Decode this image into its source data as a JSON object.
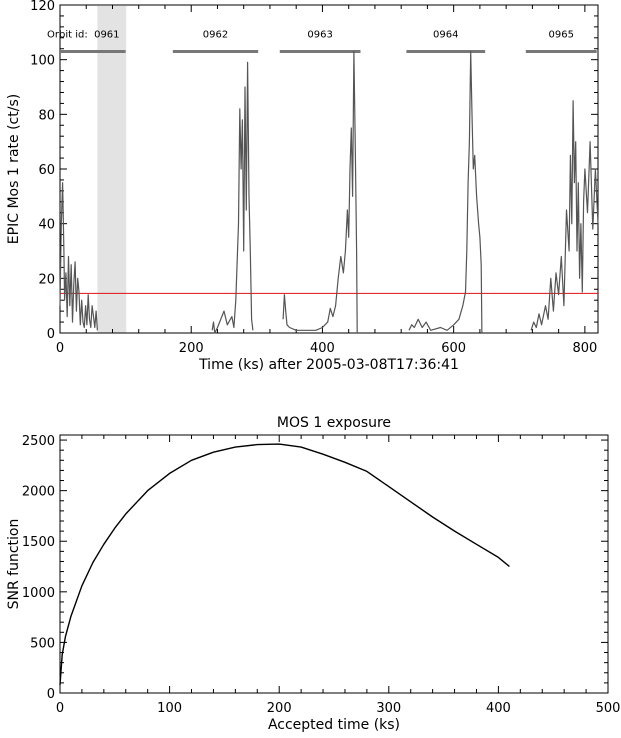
{
  "chart_data": [
    {
      "type": "line",
      "title": "",
      "xlabel": "Time (ks) after 2005-03-08T17:36:41",
      "ylabel": "EPIC Mos 1 rate (ct/s)",
      "xlim": [
        0,
        820
      ],
      "ylim": [
        0,
        120
      ],
      "xticks": [
        0,
        200,
        400,
        600,
        800
      ],
      "yticks": [
        0,
        20,
        40,
        60,
        80,
        100,
        120
      ],
      "threshold": 14.5,
      "threshold_color": "#dd1111",
      "shaded_interval": [
        57,
        101
      ],
      "orbit_label_prefix": "Orbit id:",
      "orbits": [
        {
          "id": "0961",
          "start": 0,
          "end": 100
        },
        {
          "id": "0962",
          "start": 172,
          "end": 302
        },
        {
          "id": "0963",
          "start": 335,
          "end": 458
        },
        {
          "id": "0964",
          "start": 528,
          "end": 648
        },
        {
          "id": "0965",
          "start": 710,
          "end": 818
        }
      ],
      "series": [
        {
          "points": [
            [
              0,
              10
            ],
            [
              2,
              40
            ],
            [
              4,
              55
            ],
            [
              6,
              30
            ],
            [
              7,
              12
            ],
            [
              9,
              22
            ],
            [
              11,
              6
            ],
            [
              13,
              28
            ],
            [
              15,
              10
            ],
            [
              17,
              25
            ],
            [
              19,
              4
            ],
            [
              21,
              18
            ],
            [
              23,
              26
            ],
            [
              25,
              8
            ],
            [
              27,
              20
            ],
            [
              29,
              15
            ],
            [
              31,
              3
            ],
            [
              33,
              12
            ],
            [
              35,
              4
            ],
            [
              37,
              2
            ],
            [
              39,
              10
            ],
            [
              41,
              3
            ],
            [
              43,
              14
            ],
            [
              45,
              5
            ],
            [
              47,
              2
            ],
            [
              49,
              10
            ],
            [
              51,
              6
            ],
            [
              53,
              2
            ],
            [
              55,
              8
            ],
            [
              57,
              1
            ]
          ]
        },
        {
          "points": [
            [
              232,
              1
            ],
            [
              234,
              4
            ],
            [
              236,
              0
            ],
            [
              240,
              2
            ],
            [
              250,
              8
            ],
            [
              255,
              3
            ],
            [
              262,
              6
            ],
            [
              265,
              2
            ],
            [
              268,
              12
            ],
            [
              272,
              40
            ],
            [
              274,
              82
            ],
            [
              276,
              60
            ],
            [
              278,
              78
            ],
            [
              280,
              30
            ],
            [
              282,
              90
            ],
            [
              284,
              45
            ],
            [
              286,
              99
            ],
            [
              288,
              50
            ],
            [
              290,
              30
            ],
            [
              292,
              5
            ],
            [
              294,
              1
            ]
          ]
        },
        {
          "points": [
            [
              340,
              5
            ],
            [
              342,
              14
            ],
            [
              344,
              8
            ],
            [
              346,
              3
            ],
            [
              350,
              2
            ],
            [
              360,
              1
            ],
            [
              390,
              1
            ],
            [
              400,
              2
            ],
            [
              408,
              4
            ],
            [
              412,
              9
            ],
            [
              416,
              6
            ],
            [
              420,
              10
            ],
            [
              424,
              20
            ],
            [
              428,
              28
            ],
            [
              432,
              22
            ],
            [
              435,
              30
            ],
            [
              438,
              45
            ],
            [
              440,
              35
            ],
            [
              442,
              60
            ],
            [
              444,
              75
            ],
            [
              446,
              50
            ],
            [
              448,
              103
            ],
            [
              450,
              70
            ],
            [
              452,
              30
            ],
            [
              453,
              0
            ]
          ]
        },
        {
          "points": [
            [
              532,
              1
            ],
            [
              536,
              3
            ],
            [
              540,
              2
            ],
            [
              546,
              5
            ],
            [
              552,
              2
            ],
            [
              558,
              4
            ],
            [
              565,
              1
            ],
            [
              580,
              2
            ],
            [
              590,
              1
            ],
            [
              600,
              3
            ],
            [
              608,
              5
            ],
            [
              614,
              10
            ],
            [
              618,
              15
            ],
            [
              620,
              30
            ],
            [
              622,
              55
            ],
            [
              624,
              70
            ],
            [
              626,
              103
            ],
            [
              628,
              80
            ],
            [
              630,
              60
            ],
            [
              632,
              65
            ],
            [
              635,
              50
            ],
            [
              638,
              40
            ],
            [
              640,
              35
            ],
            [
              642,
              25
            ],
            [
              643,
              0
            ]
          ]
        },
        {
          "points": [
            [
              718,
              1
            ],
            [
              722,
              4
            ],
            [
              726,
              2
            ],
            [
              730,
              7
            ],
            [
              734,
              3
            ],
            [
              740,
              10
            ],
            [
              744,
              5
            ],
            [
              748,
              20
            ],
            [
              752,
              8
            ],
            [
              756,
              22
            ],
            [
              760,
              14
            ],
            [
              764,
              28
            ],
            [
              768,
              10
            ],
            [
              772,
              45
            ],
            [
              776,
              30
            ],
            [
              778,
              65
            ],
            [
              780,
              40
            ],
            [
              782,
              85
            ],
            [
              784,
              55
            ],
            [
              786,
              70
            ],
            [
              788,
              30
            ],
            [
              790,
              55
            ],
            [
              792,
              20
            ],
            [
              794,
              40
            ],
            [
              796,
              15
            ],
            [
              798,
              48
            ],
            [
              800,
              60
            ],
            [
              804,
              44
            ],
            [
              808,
              70
            ],
            [
              812,
              38
            ],
            [
              816,
              60
            ],
            [
              820,
              40
            ]
          ]
        }
      ]
    },
    {
      "type": "line",
      "title": "MOS 1 exposure",
      "xlabel": "Accepted time (ks)",
      "ylabel": "SNR function",
      "xlim": [
        0,
        500
      ],
      "ylim": [
        0,
        2550
      ],
      "xticks": [
        0,
        100,
        200,
        300,
        400,
        500
      ],
      "yticks": [
        0,
        500,
        1000,
        1500,
        2000,
        2500
      ],
      "series": [
        {
          "points": [
            [
              0,
              80
            ],
            [
              2,
              380
            ],
            [
              5,
              560
            ],
            [
              10,
              760
            ],
            [
              20,
              1060
            ],
            [
              30,
              1290
            ],
            [
              40,
              1470
            ],
            [
              50,
              1630
            ],
            [
              60,
              1770
            ],
            [
              80,
              2000
            ],
            [
              100,
              2170
            ],
            [
              120,
              2300
            ],
            [
              140,
              2380
            ],
            [
              160,
              2430
            ],
            [
              180,
              2455
            ],
            [
              200,
              2460
            ],
            [
              220,
              2430
            ],
            [
              240,
              2360
            ],
            [
              260,
              2280
            ],
            [
              280,
              2190
            ],
            [
              300,
              2040
            ],
            [
              320,
              1890
            ],
            [
              340,
              1740
            ],
            [
              360,
              1600
            ],
            [
              380,
              1470
            ],
            [
              400,
              1340
            ],
            [
              410,
              1250
            ]
          ]
        }
      ]
    }
  ]
}
